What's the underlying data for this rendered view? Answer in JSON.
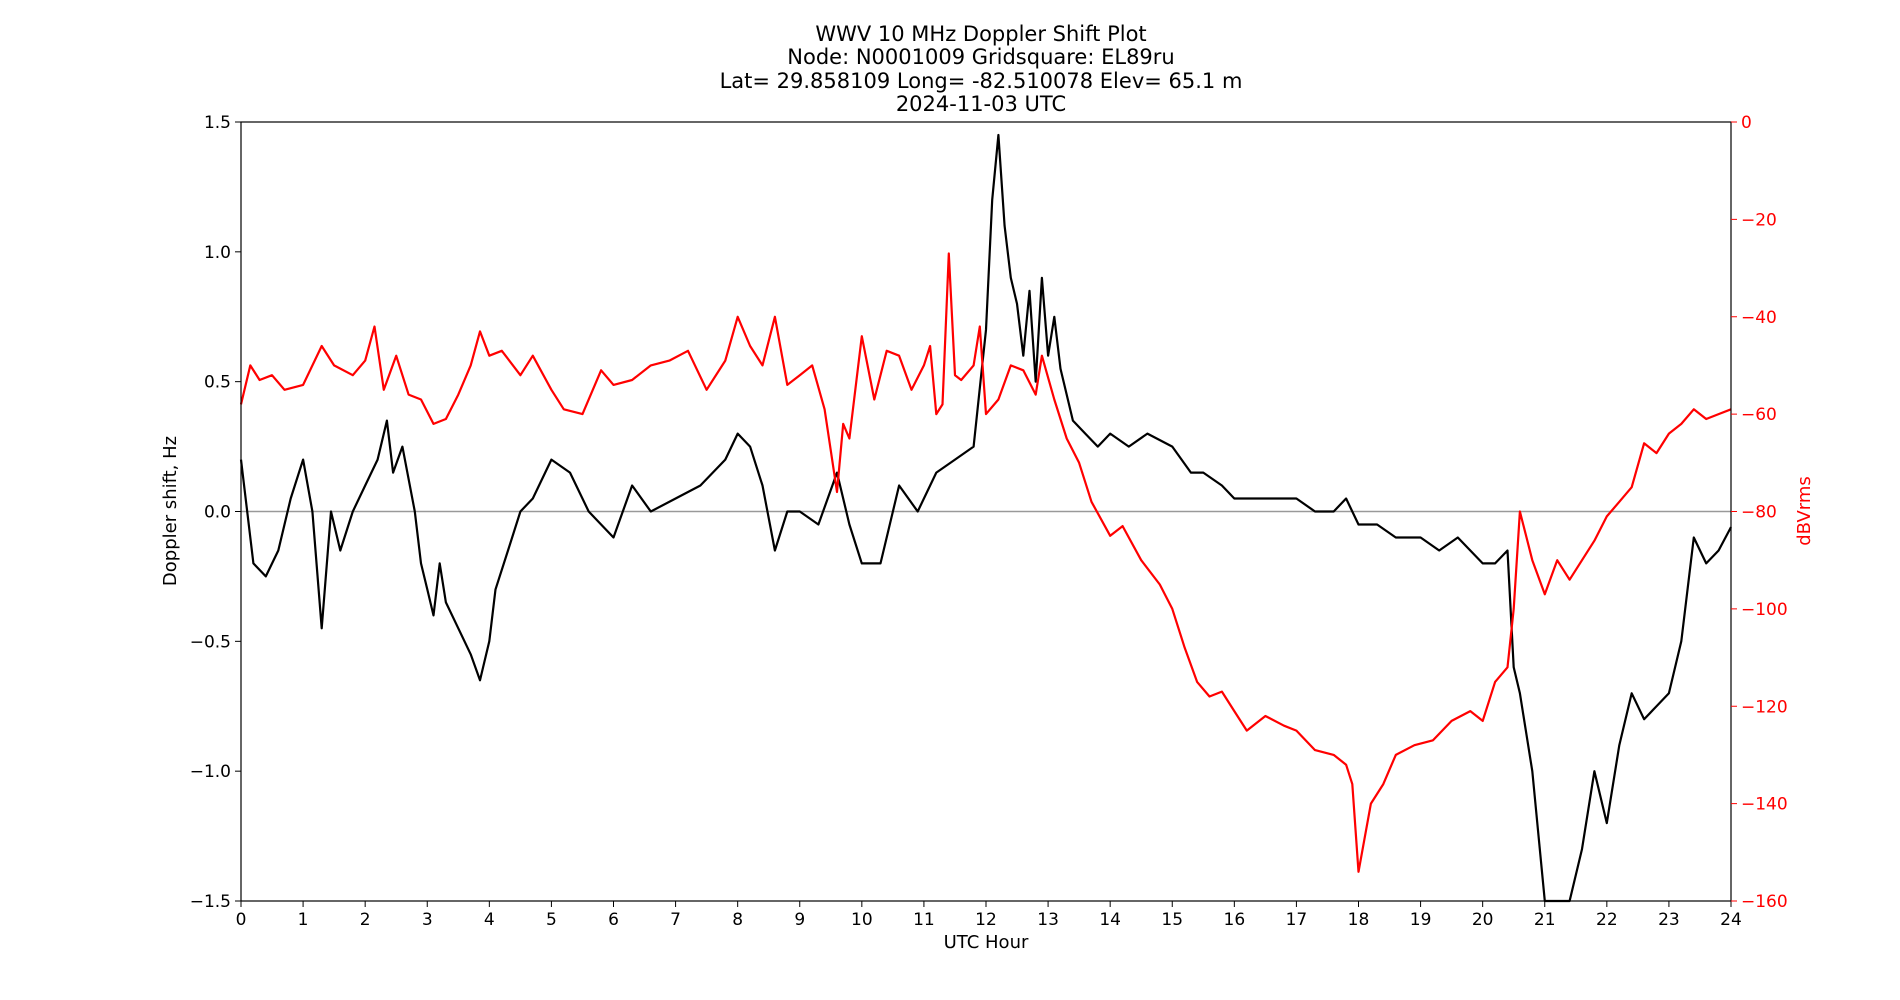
{
  "chart_data": {
    "type": "line",
    "title_lines": [
      "WWV 10 MHz Doppler Shift Plot",
      "Node:  N0001009     Gridsquare:  EL89ru",
      "Lat= 29.858109    Long= -82.510078    Elev= 65.1 m",
      "2024-11-03  UTC"
    ],
    "xlabel": "UTC Hour",
    "ylabel_left": "Doppler shift, Hz",
    "ylabel_right": "dBVrms",
    "xlim": [
      0,
      24
    ],
    "ylim_left": [
      -1.5,
      1.5
    ],
    "ylim_right": [
      -160,
      0
    ],
    "x_ticks": [
      "0",
      "1",
      "2",
      "3",
      "4",
      "5",
      "6",
      "7",
      "8",
      "9",
      "10",
      "11",
      "12",
      "13",
      "14",
      "15",
      "16",
      "17",
      "18",
      "19",
      "20",
      "21",
      "22",
      "23",
      "24"
    ],
    "y_ticks_left": [
      "1.5",
      "1.0",
      "0.5",
      "0.0",
      "−0.5",
      "−1.0",
      "−1.5"
    ],
    "y_ticks_right": [
      "0",
      "−20",
      "−40",
      "−60",
      "−80",
      "−100",
      "−120",
      "−140",
      "−160"
    ],
    "zero_line": 0.0,
    "colors": {
      "doppler": "#000000",
      "power": "#ff0000",
      "zero_line": "#999999"
    },
    "series": [
      {
        "axis": "left",
        "x": [
          0,
          0.2,
          0.4,
          0.6,
          0.8,
          1,
          1.15,
          1.3,
          1.45,
          1.6,
          1.8,
          2,
          2.2,
          2.35,
          2.45,
          2.6,
          2.8,
          2.9,
          3,
          3.1,
          3.2,
          3.3,
          3.5,
          3.7,
          3.85,
          4,
          4.1,
          4.3,
          4.5,
          4.7,
          5,
          5.3,
          5.6,
          6,
          6.3,
          6.6,
          7,
          7.4,
          7.8,
          8,
          8.2,
          8.4,
          8.6,
          8.8,
          9,
          9.3,
          9.6,
          9.8,
          10,
          10.3,
          10.6,
          10.9,
          11.2,
          11.5,
          11.8,
          12,
          12.1,
          12.2,
          12.3,
          12.4,
          12.5,
          12.6,
          12.7,
          12.8,
          12.9,
          13,
          13.1,
          13.2,
          13.4,
          13.6,
          13.8,
          14,
          14.3,
          14.6,
          15,
          15.3,
          15.5,
          15.8,
          16,
          16.3,
          16.6,
          17,
          17.3,
          17.6,
          17.8,
          18,
          18.3,
          18.6,
          19,
          19.3,
          19.6,
          20,
          20.2,
          20.4,
          20.5,
          20.6,
          20.8,
          21,
          21.2,
          21.4,
          21.6,
          21.8,
          22,
          22.2,
          22.4,
          22.6,
          22.8,
          23,
          23.2,
          23.4,
          23.6,
          23.8,
          24
        ],
        "y": [
          0.2,
          -0.2,
          -0.25,
          -0.15,
          0.05,
          0.2,
          0.0,
          -0.45,
          0.0,
          -0.15,
          0.0,
          0.1,
          0.2,
          0.35,
          0.15,
          0.25,
          0.0,
          -0.2,
          -0.3,
          -0.4,
          -0.2,
          -0.35,
          -0.45,
          -0.55,
          -0.65,
          -0.5,
          -0.3,
          -0.15,
          0.0,
          0.05,
          0.2,
          0.15,
          0.0,
          -0.1,
          0.1,
          0.0,
          0.05,
          0.1,
          0.2,
          0.3,
          0.25,
          0.1,
          -0.15,
          0.0,
          0.0,
          -0.05,
          0.15,
          -0.05,
          -0.2,
          -0.2,
          0.1,
          0.0,
          0.15,
          0.2,
          0.25,
          0.7,
          1.2,
          1.45,
          1.1,
          0.9,
          0.8,
          0.6,
          0.85,
          0.5,
          0.9,
          0.6,
          0.75,
          0.55,
          0.35,
          0.3,
          0.25,
          0.3,
          0.25,
          0.3,
          0.25,
          0.15,
          0.15,
          0.1,
          0.05,
          0.05,
          0.05,
          0.05,
          0.0,
          0.0,
          0.05,
          -0.05,
          -0.05,
          -0.1,
          -0.1,
          -0.15,
          -0.1,
          -0.2,
          -0.2,
          -0.15,
          -0.6,
          -0.7,
          -1.0,
          -1.5,
          -1.5,
          -1.5,
          -1.3,
          -1.0,
          -1.2,
          -0.9,
          -0.7,
          -0.8,
          -0.75,
          -0.7,
          -0.5,
          -0.1,
          -0.2,
          -0.15,
          -0.06
        ]
      },
      {
        "axis": "right",
        "x": [
          0,
          0.15,
          0.3,
          0.5,
          0.7,
          1,
          1.3,
          1.5,
          1.8,
          2,
          2.15,
          2.3,
          2.5,
          2.7,
          2.9,
          3.1,
          3.3,
          3.5,
          3.7,
          3.85,
          4,
          4.2,
          4.5,
          4.7,
          5,
          5.2,
          5.5,
          5.8,
          6,
          6.3,
          6.6,
          6.9,
          7.2,
          7.5,
          7.8,
          8,
          8.2,
          8.4,
          8.6,
          8.8,
          9,
          9.2,
          9.4,
          9.6,
          9.7,
          9.8,
          10,
          10.2,
          10.4,
          10.6,
          10.8,
          11,
          11.1,
          11.2,
          11.3,
          11.4,
          11.5,
          11.6,
          11.8,
          11.9,
          12,
          12.2,
          12.4,
          12.6,
          12.8,
          12.9,
          13.1,
          13.3,
          13.5,
          13.7,
          14,
          14.2,
          14.5,
          14.8,
          15,
          15.2,
          15.4,
          15.6,
          15.8,
          16,
          16.2,
          16.5,
          16.8,
          17,
          17.3,
          17.6,
          17.8,
          17.9,
          18,
          18.2,
          18.4,
          18.6,
          18.9,
          19.2,
          19.5,
          19.8,
          20,
          20.2,
          20.4,
          20.5,
          20.6,
          20.8,
          21,
          21.2,
          21.4,
          21.6,
          21.8,
          22,
          22.2,
          22.4,
          22.6,
          22.8,
          23,
          23.2,
          23.4,
          23.6,
          23.8,
          24
        ],
        "y": [
          -58,
          -50,
          -53,
          -52,
          -55,
          -54,
          -46,
          -50,
          -52,
          -49,
          -42,
          -55,
          -48,
          -56,
          -57,
          -62,
          -61,
          -56,
          -50,
          -43,
          -48,
          -47,
          -52,
          -48,
          -55,
          -59,
          -60,
          -51,
          -54,
          -53,
          -50,
          -49,
          -47,
          -55,
          -49,
          -40,
          -46,
          -50,
          -40,
          -54,
          -52,
          -50,
          -59,
          -76,
          -62,
          -65,
          -44,
          -57,
          -47,
          -48,
          -55,
          -50,
          -46,
          -60,
          -58,
          -27,
          -52,
          -53,
          -50,
          -42,
          -60,
          -57,
          -50,
          -51,
          -56,
          -48,
          -57,
          -65,
          -70,
          -78,
          -85,
          -83,
          -90,
          -95,
          -100,
          -108,
          -115,
          -118,
          -117,
          -121,
          -125,
          -122,
          -124,
          -125,
          -129,
          -130,
          -132,
          -136,
          -154,
          -140,
          -136,
          -130,
          -128,
          -127,
          -123,
          -121,
          -123,
          -115,
          -112,
          -100,
          -80,
          -90,
          -97,
          -90,
          -94,
          -90,
          -86,
          -81,
          -78,
          -75,
          -66,
          -68,
          -64,
          -62,
          -59,
          -61,
          -60,
          -59
        ]
      }
    ]
  }
}
